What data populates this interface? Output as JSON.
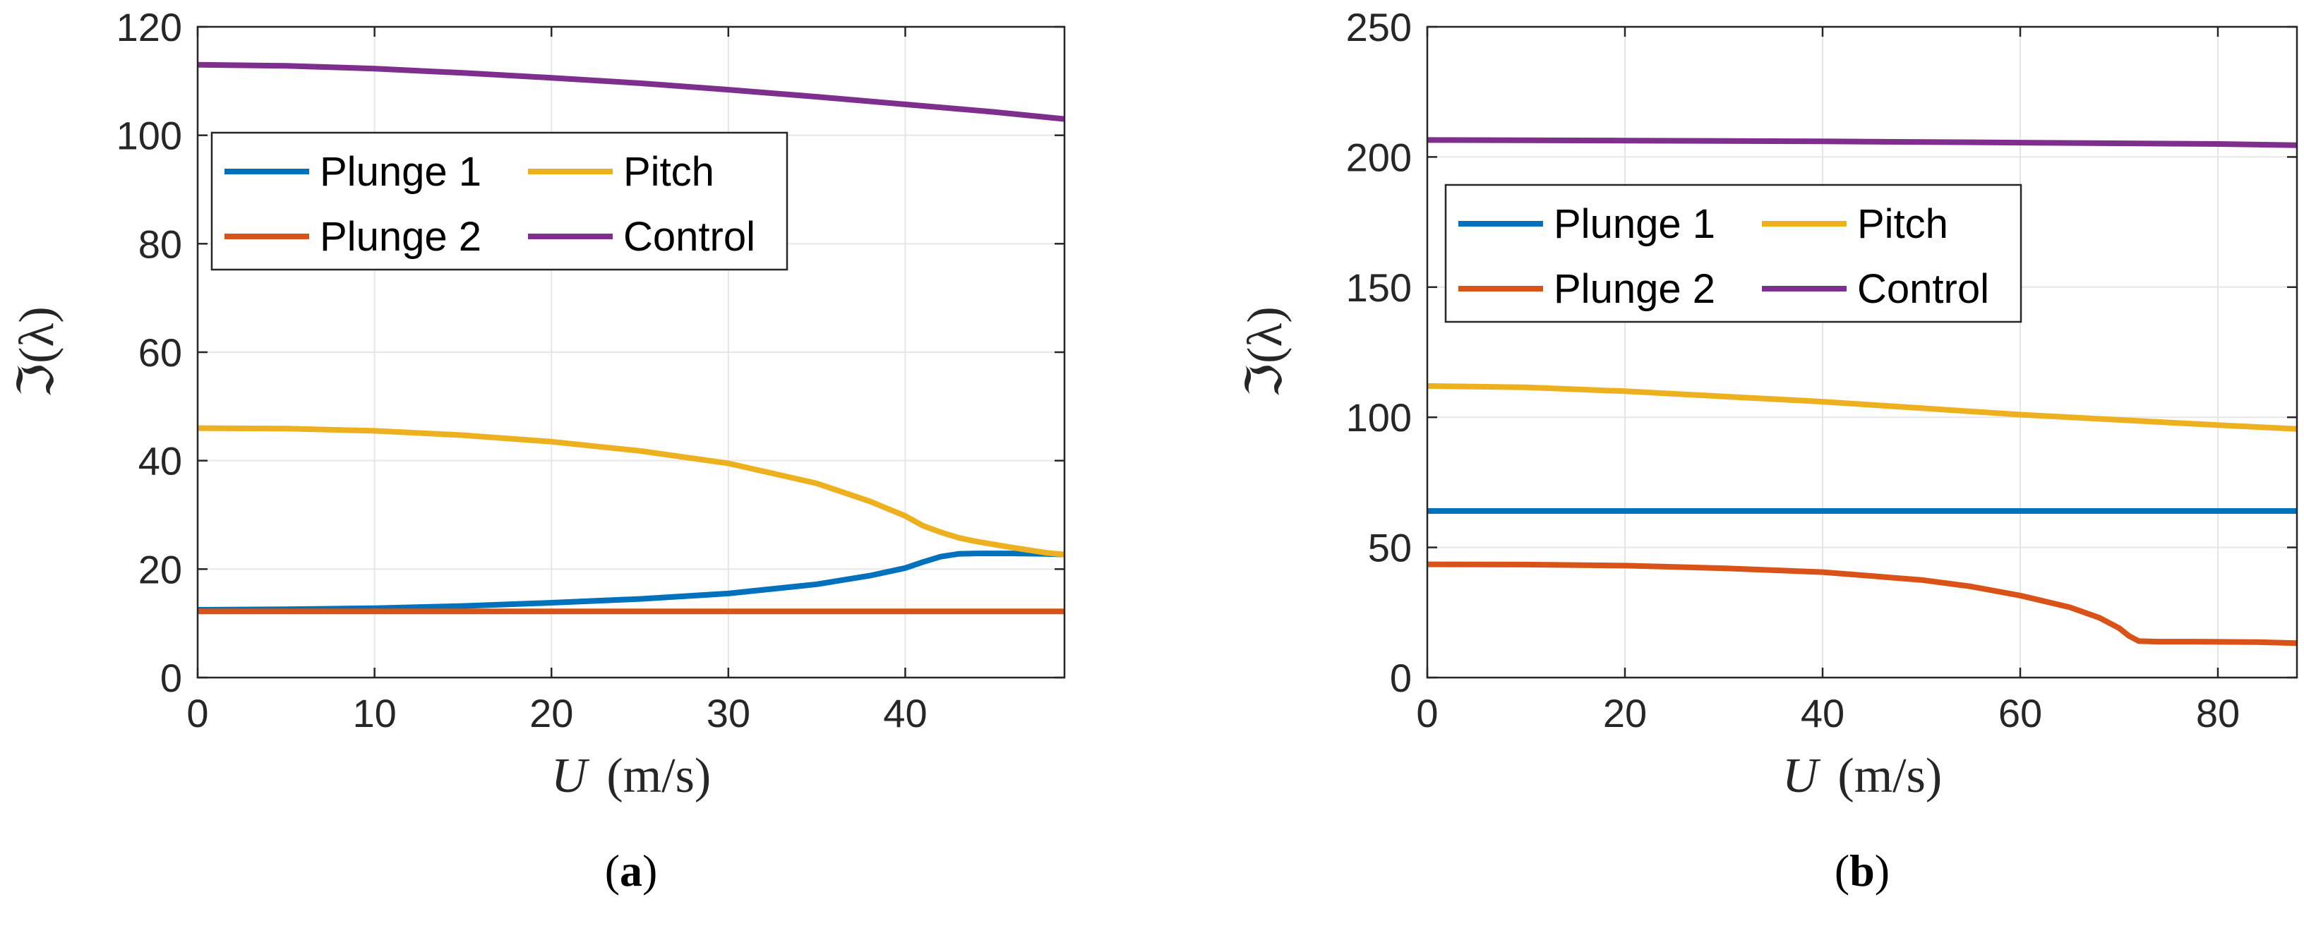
{
  "chart_data": [
    {
      "type": "line",
      "panel_label": "(a)",
      "panel_letter": "a",
      "xlabel": "U (m/s)",
      "xlabel_var": "U",
      "xlabel_unit": "(m/s)",
      "ylabel": "ℑ(λ)",
      "xlim": [
        0,
        49
      ],
      "ylim": [
        0,
        120
      ],
      "xticks": [
        0,
        10,
        20,
        30,
        40
      ],
      "yticks": [
        0,
        20,
        40,
        60,
        80,
        100,
        120
      ],
      "grid": true,
      "legend_position": "upper-left",
      "legend_entries": [
        "Plunge 1",
        "Pitch",
        "Plunge 2",
        "Control"
      ],
      "series": [
        {
          "name": "Plunge 1",
          "color": "#0072BD",
          "x": [
            0,
            5,
            10,
            15,
            20,
            25,
            30,
            35,
            38,
            40,
            41,
            42,
            43,
            44,
            46,
            48,
            49
          ],
          "y": [
            12.5,
            12.6,
            12.8,
            13.2,
            13.8,
            14.5,
            15.5,
            17.2,
            18.8,
            20.2,
            21.3,
            22.3,
            22.8,
            22.9,
            22.9,
            22.8,
            22.7
          ]
        },
        {
          "name": "Plunge 2",
          "color": "#D95319",
          "x": [
            0,
            10,
            20,
            30,
            40,
            49
          ],
          "y": [
            12.2,
            12.2,
            12.2,
            12.2,
            12.2,
            12.2
          ]
        },
        {
          "name": "Pitch",
          "color": "#EDB120",
          "x": [
            0,
            5,
            10,
            15,
            20,
            25,
            30,
            35,
            38,
            40,
            41,
            42,
            43,
            44,
            46,
            48,
            49
          ],
          "y": [
            46,
            45.9,
            45.5,
            44.7,
            43.5,
            41.8,
            39.5,
            35.8,
            32.5,
            29.8,
            28.0,
            26.8,
            25.8,
            25.1,
            24.0,
            23.0,
            22.7
          ]
        },
        {
          "name": "Control",
          "color": "#7E2F8E",
          "x": [
            0,
            5,
            10,
            15,
            20,
            25,
            30,
            35,
            40,
            45,
            49
          ],
          "y": [
            113,
            112.8,
            112.3,
            111.5,
            110.6,
            109.6,
            108.4,
            107.1,
            105.7,
            104.3,
            103
          ]
        }
      ]
    },
    {
      "type": "line",
      "panel_label": "(b)",
      "panel_letter": "b",
      "xlabel": "U (m/s)",
      "xlabel_var": "U",
      "xlabel_unit": "(m/s)",
      "ylabel": "ℑ(λ)",
      "xlim": [
        0,
        88
      ],
      "ylim": [
        0,
        250
      ],
      "xticks": [
        0,
        20,
        40,
        60,
        80
      ],
      "yticks": [
        0,
        50,
        100,
        150,
        200,
        250
      ],
      "grid": true,
      "legend_position": "upper-left",
      "legend_entries": [
        "Plunge 1",
        "Pitch",
        "Plunge 2",
        "Control"
      ],
      "series": [
        {
          "name": "Plunge 1",
          "color": "#0072BD",
          "x": [
            0,
            20,
            40,
            60,
            80,
            88
          ],
          "y": [
            64,
            64,
            64,
            64,
            64,
            64
          ]
        },
        {
          "name": "Plunge 2",
          "color": "#D95319",
          "x": [
            0,
            10,
            20,
            30,
            40,
            50,
            55,
            60,
            65,
            68,
            70,
            71,
            72,
            74,
            78,
            84,
            88
          ],
          "y": [
            43.5,
            43.4,
            43,
            42,
            40.5,
            37.5,
            35,
            31.5,
            27,
            23,
            19,
            16,
            14,
            13.8,
            13.8,
            13.6,
            13.2
          ]
        },
        {
          "name": "Pitch",
          "color": "#EDB120",
          "x": [
            0,
            10,
            20,
            30,
            40,
            50,
            60,
            70,
            80,
            88
          ],
          "y": [
            112,
            111.5,
            110,
            108,
            106,
            103.5,
            101,
            99,
            97,
            95.5
          ]
        },
        {
          "name": "Control",
          "color": "#7E2F8E",
          "x": [
            0,
            20,
            40,
            60,
            80,
            88
          ],
          "y": [
            206.5,
            206.3,
            206,
            205.5,
            205,
            204.5
          ]
        }
      ]
    }
  ]
}
